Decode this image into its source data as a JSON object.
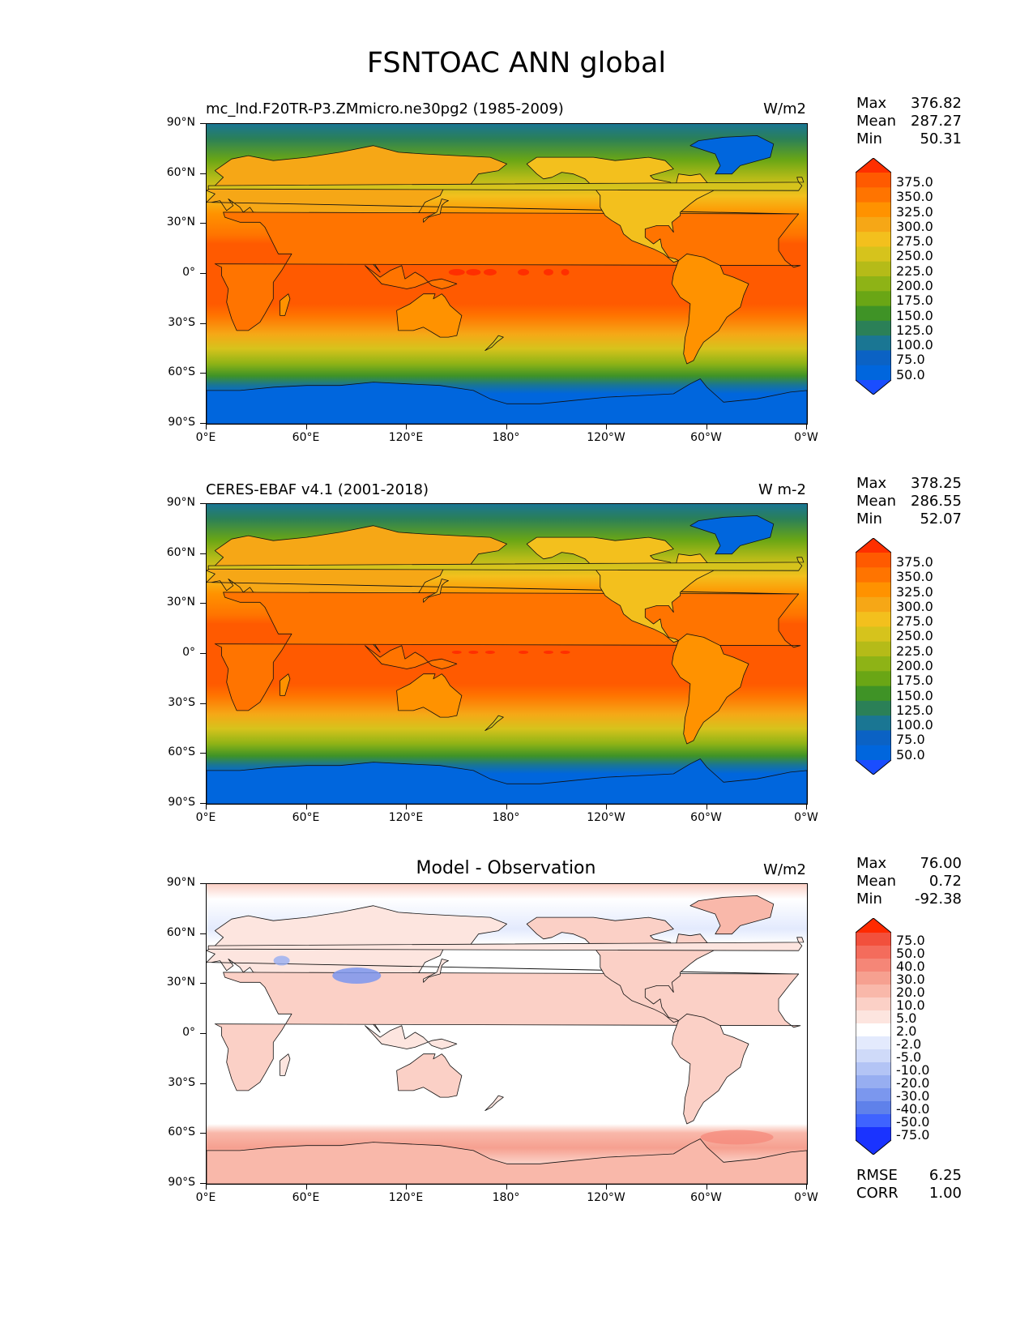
{
  "figure": {
    "title": "FSNTOAC ANN global",
    "lat_labels": [
      "90°N",
      "60°N",
      "30°N",
      "0°",
      "30°S",
      "60°S",
      "90°S"
    ],
    "lon_labels": [
      "0°E",
      "60°E",
      "120°E",
      "180°",
      "120°W",
      "60°W",
      "0°W"
    ]
  },
  "panels": [
    {
      "id": "model",
      "title_left": "mc_lnd.F20TR-P3.ZMmicro.ne30pg2 (1985-2009)",
      "title_center": "",
      "units": "W/m2",
      "stats": [
        {
          "k": "Max",
          "v": "376.82"
        },
        {
          "k": "Mean",
          "v": "287.27"
        },
        {
          "k": "Min",
          "v": "50.31"
        }
      ],
      "colorbar_levels": [
        "375.0",
        "350.0",
        "325.0",
        "300.0",
        "275.0",
        "250.0",
        "225.0",
        "200.0",
        "175.0",
        "150.0",
        "125.0",
        "100.0",
        "75.0",
        "50.0"
      ],
      "colormap": [
        "#ff2f00",
        "#ff5a00",
        "#ff7400",
        "#ff9200",
        "#f6a716",
        "#f3c01d",
        "#d6c31c",
        "#b5bb18",
        "#8eb316",
        "#6aa615",
        "#3f9326",
        "#2b8057",
        "#1a7693",
        "#0b62c4",
        "#0066dd",
        "#1a4dff"
      ]
    },
    {
      "id": "obs",
      "title_left": "CERES-EBAF v4.1 (2001-2018)",
      "title_center": "",
      "units": "W m-2",
      "stats": [
        {
          "k": "Max",
          "v": "378.25"
        },
        {
          "k": "Mean",
          "v": "286.55"
        },
        {
          "k": "Min",
          "v": "52.07"
        }
      ],
      "colorbar_levels": [
        "375.0",
        "350.0",
        "325.0",
        "300.0",
        "275.0",
        "250.0",
        "225.0",
        "200.0",
        "175.0",
        "150.0",
        "125.0",
        "100.0",
        "75.0",
        "50.0"
      ],
      "colormap": [
        "#ff2f00",
        "#ff5a00",
        "#ff7400",
        "#ff9200",
        "#f6a716",
        "#f3c01d",
        "#d6c31c",
        "#b5bb18",
        "#8eb316",
        "#6aa615",
        "#3f9326",
        "#2b8057",
        "#1a7693",
        "#0b62c4",
        "#0066dd",
        "#1a4dff"
      ]
    },
    {
      "id": "diff",
      "title_left": "",
      "title_center": "Model - Observation",
      "units": "W/m2",
      "stats": [
        {
          "k": "Max",
          "v": "76.00"
        },
        {
          "k": "Mean",
          "v": "0.72"
        },
        {
          "k": "Min",
          "v": "-92.38"
        }
      ],
      "colorbar_levels": [
        "75.0",
        "50.0",
        "40.0",
        "30.0",
        "20.0",
        "10.0",
        "5.0",
        "2.0",
        "-2.0",
        "-5.0",
        "-10.0",
        "-20.0",
        "-30.0",
        "-40.0",
        "-50.0",
        "-75.0"
      ],
      "colormap": [
        "#ff2a00",
        "#f2503c",
        "#f46c5c",
        "#f58677",
        "#f6a090",
        "#f9b8aa",
        "#fbd0c6",
        "#fde5df",
        "#ffffff",
        "#e3eafd",
        "#cfdaf9",
        "#b3c4f5",
        "#97aef1",
        "#7b97ee",
        "#5f81ea",
        "#3f63ff",
        "#1a33ff",
        "#1a33ff"
      ],
      "bottom_stats": [
        {
          "k": "RMSE",
          "v": "6.25"
        },
        {
          "k": "CORR",
          "v": "1.00"
        }
      ]
    }
  ]
}
